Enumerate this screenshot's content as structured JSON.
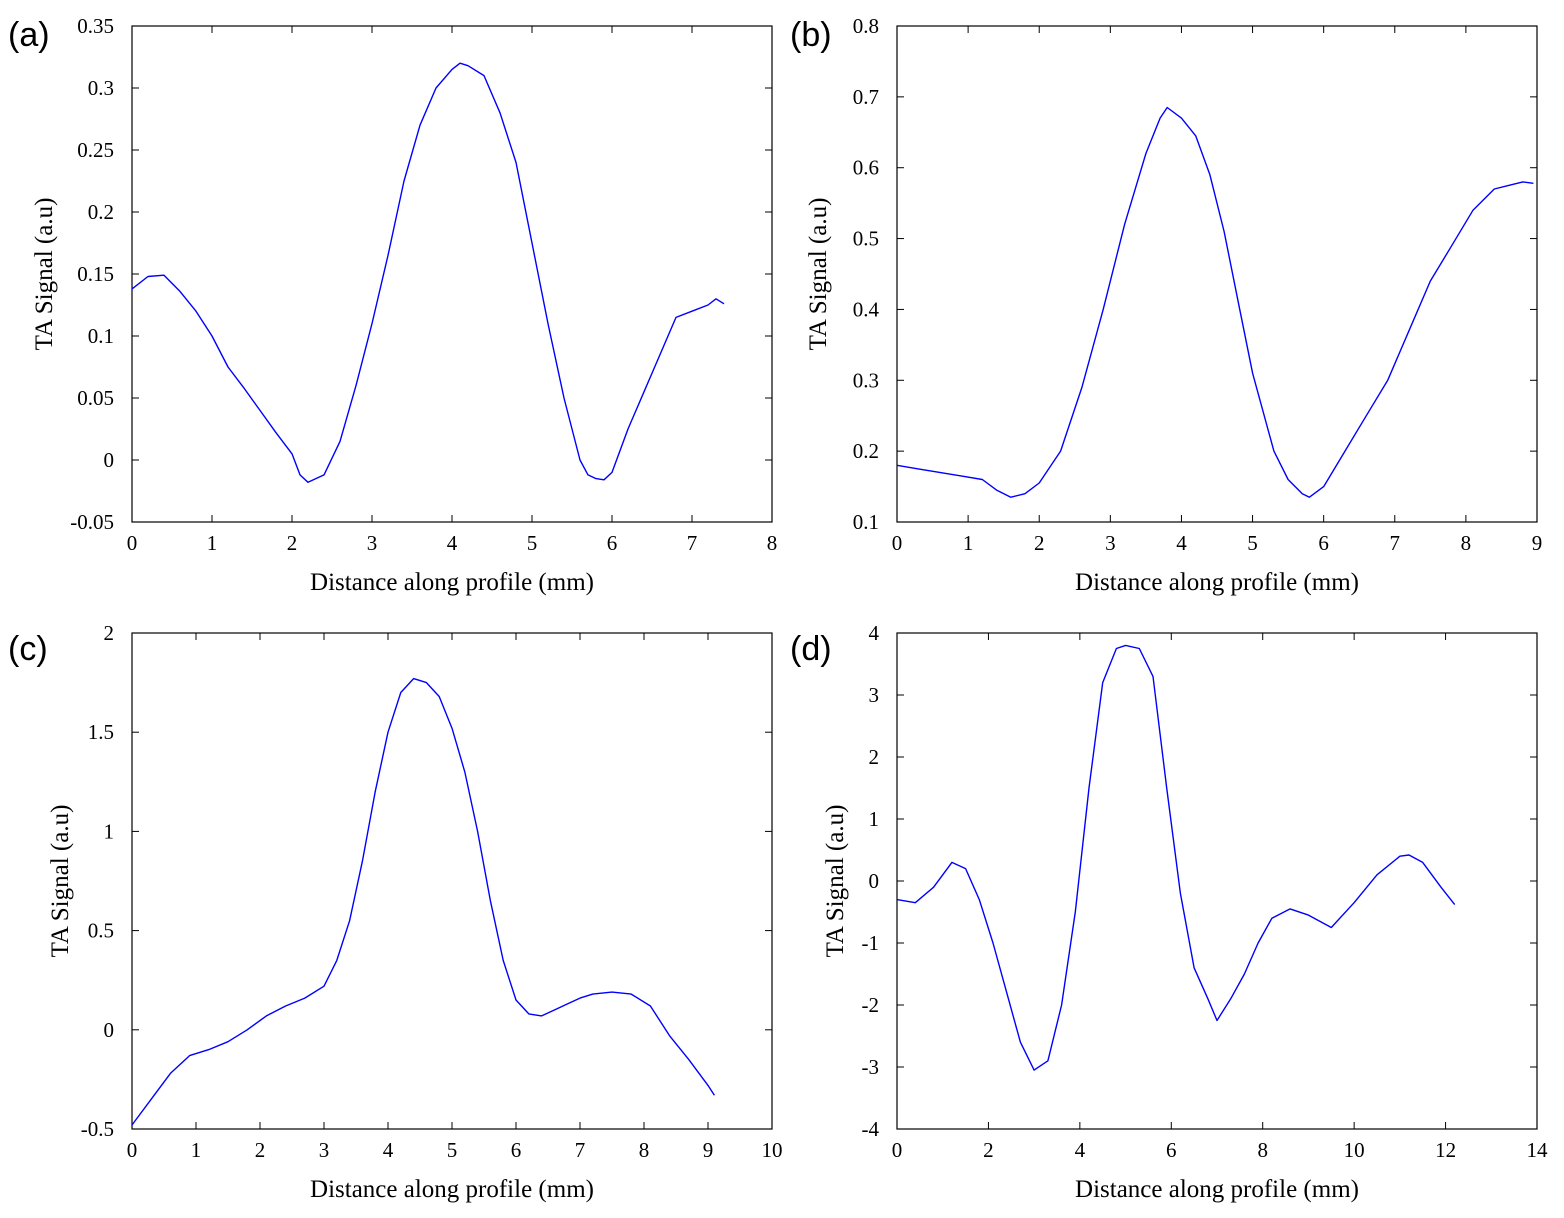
{
  "chart_data": [
    {
      "panel_label": "(a)",
      "type": "line",
      "xlabel": "Distance along profile (mm)",
      "ylabel": "TA Signal (a.u)",
      "xlim": [
        0,
        8
      ],
      "ylim": [
        -0.05,
        0.35
      ],
      "xticks": [
        0,
        1,
        2,
        3,
        4,
        5,
        6,
        7,
        8
      ],
      "yticks": [
        -0.05,
        0,
        0.05,
        0.1,
        0.15,
        0.2,
        0.25,
        0.3,
        0.35
      ],
      "xtick_labels": [
        "0",
        "1",
        "2",
        "3",
        "4",
        "5",
        "6",
        "7",
        "8"
      ],
      "ytick_labels": [
        "-0.05",
        "0",
        "0.05",
        "0.1",
        "0.15",
        "0.2",
        "0.25",
        "0.3",
        "0.35"
      ],
      "line_color": "#0000ff",
      "series": [
        {
          "name": "TA Signal",
          "x": [
            0,
            0.2,
            0.4,
            0.6,
            0.8,
            1.0,
            1.2,
            1.4,
            1.6,
            1.8,
            2.0,
            2.1,
            2.2,
            2.4,
            2.6,
            2.8,
            3.0,
            3.2,
            3.4,
            3.6,
            3.8,
            4.0,
            4.1,
            4.2,
            4.4,
            4.6,
            4.8,
            5.0,
            5.2,
            5.4,
            5.6,
            5.7,
            5.8,
            5.9,
            6.0,
            6.2,
            6.4,
            6.6,
            6.8,
            7.0,
            7.2,
            7.3,
            7.4
          ],
          "y": [
            0.138,
            0.148,
            0.149,
            0.136,
            0.12,
            0.1,
            0.075,
            0.058,
            0.04,
            0.022,
            0.005,
            -0.012,
            -0.018,
            -0.012,
            0.015,
            0.06,
            0.11,
            0.165,
            0.225,
            0.27,
            0.3,
            0.315,
            0.32,
            0.318,
            0.31,
            0.28,
            0.24,
            0.175,
            0.11,
            0.05,
            0.0,
            -0.012,
            -0.015,
            -0.016,
            -0.01,
            0.025,
            0.055,
            0.085,
            0.115,
            0.12,
            0.125,
            0.13,
            0.126
          ]
        }
      ]
    },
    {
      "panel_label": "(b)",
      "type": "line",
      "xlabel": "Distance along profile (mm)",
      "ylabel": "TA Signal (a.u)",
      "xlim": [
        0,
        9
      ],
      "ylim": [
        0.1,
        0.8
      ],
      "xticks": [
        0,
        1,
        2,
        3,
        4,
        5,
        6,
        7,
        8,
        9
      ],
      "yticks": [
        0.1,
        0.2,
        0.3,
        0.4,
        0.5,
        0.6,
        0.7,
        0.8
      ],
      "xtick_labels": [
        "0",
        "1",
        "2",
        "3",
        "4",
        "5",
        "6",
        "7",
        "8",
        "9"
      ],
      "ytick_labels": [
        "0.1",
        "0.2",
        "0.3",
        "0.4",
        "0.5",
        "0.6",
        "0.7",
        "0.8"
      ],
      "line_color": "#0000ff",
      "series": [
        {
          "name": "TA Signal",
          "x": [
            0,
            0.3,
            0.6,
            0.9,
            1.2,
            1.4,
            1.6,
            1.8,
            2.0,
            2.3,
            2.6,
            2.9,
            3.2,
            3.5,
            3.7,
            3.8,
            4.0,
            4.2,
            4.4,
            4.6,
            4.8,
            5.0,
            5.3,
            5.5,
            5.7,
            5.8,
            6.0,
            6.3,
            6.6,
            6.9,
            7.2,
            7.5,
            7.8,
            8.1,
            8.4,
            8.6,
            8.8,
            8.95
          ],
          "y": [
            0.18,
            0.175,
            0.17,
            0.165,
            0.16,
            0.145,
            0.135,
            0.14,
            0.155,
            0.2,
            0.29,
            0.4,
            0.52,
            0.62,
            0.67,
            0.685,
            0.67,
            0.645,
            0.59,
            0.51,
            0.41,
            0.31,
            0.2,
            0.16,
            0.14,
            0.135,
            0.15,
            0.2,
            0.25,
            0.3,
            0.37,
            0.44,
            0.49,
            0.54,
            0.57,
            0.575,
            0.58,
            0.578
          ]
        }
      ]
    },
    {
      "panel_label": "(c)",
      "type": "line",
      "xlabel": "Distance along profile (mm)",
      "ylabel": "TA Signal (a.u)",
      "xlim": [
        0,
        10
      ],
      "ylim": [
        -0.5,
        2
      ],
      "xticks": [
        0,
        1,
        2,
        3,
        4,
        5,
        6,
        7,
        8,
        9,
        10
      ],
      "yticks": [
        -0.5,
        0,
        0.5,
        1,
        1.5,
        2
      ],
      "xtick_labels": [
        "0",
        "1",
        "2",
        "3",
        "4",
        "5",
        "6",
        "7",
        "8",
        "9",
        "10"
      ],
      "ytick_labels": [
        "-0.5",
        "0",
        "0.5",
        "1",
        "1.5",
        "2"
      ],
      "line_color": "#0000ff",
      "series": [
        {
          "name": "TA Signal",
          "x": [
            0,
            0.3,
            0.6,
            0.9,
            1.2,
            1.5,
            1.8,
            2.1,
            2.4,
            2.7,
            3.0,
            3.2,
            3.4,
            3.6,
            3.8,
            4.0,
            4.2,
            4.4,
            4.6,
            4.8,
            5.0,
            5.2,
            5.4,
            5.6,
            5.8,
            6.0,
            6.2,
            6.4,
            6.6,
            6.8,
            7.0,
            7.2,
            7.5,
            7.8,
            8.1,
            8.4,
            8.7,
            9.0,
            9.1
          ],
          "y": [
            -0.48,
            -0.35,
            -0.22,
            -0.13,
            -0.1,
            -0.06,
            0.0,
            0.07,
            0.12,
            0.16,
            0.22,
            0.35,
            0.55,
            0.85,
            1.2,
            1.5,
            1.7,
            1.77,
            1.75,
            1.68,
            1.52,
            1.3,
            1.0,
            0.65,
            0.35,
            0.15,
            0.08,
            0.07,
            0.1,
            0.13,
            0.16,
            0.18,
            0.19,
            0.18,
            0.12,
            -0.03,
            -0.15,
            -0.28,
            -0.33
          ]
        }
      ]
    },
    {
      "panel_label": "(d)",
      "type": "line",
      "xlabel": "Distance along profile (mm)",
      "ylabel": "TA Signal (a.u)",
      "xlim": [
        0,
        14
      ],
      "ylim": [
        -4,
        4
      ],
      "xticks": [
        0,
        2,
        4,
        6,
        8,
        10,
        12,
        14
      ],
      "yticks": [
        -4,
        -3,
        -2,
        -1,
        0,
        1,
        2,
        3,
        4
      ],
      "xtick_labels": [
        "0",
        "2",
        "4",
        "6",
        "8",
        "10",
        "12",
        "14"
      ],
      "ytick_labels": [
        "-4",
        "-3",
        "-2",
        "-1",
        "0",
        "1",
        "2",
        "3",
        "4"
      ],
      "line_color": "#0000ff",
      "series": [
        {
          "name": "TA Signal",
          "x": [
            0,
            0.4,
            0.8,
            1.2,
            1.5,
            1.8,
            2.1,
            2.4,
            2.7,
            3.0,
            3.3,
            3.6,
            3.9,
            4.2,
            4.5,
            4.8,
            5.0,
            5.3,
            5.6,
            5.9,
            6.2,
            6.5,
            6.8,
            7.0,
            7.3,
            7.6,
            7.9,
            8.2,
            8.6,
            9.0,
            9.5,
            10.0,
            10.5,
            11.0,
            11.2,
            11.5,
            11.9,
            12.2
          ],
          "y": [
            -0.3,
            -0.35,
            -0.1,
            0.3,
            0.2,
            -0.3,
            -1.0,
            -1.8,
            -2.6,
            -3.05,
            -2.9,
            -2.0,
            -0.5,
            1.5,
            3.2,
            3.75,
            3.8,
            3.75,
            3.3,
            1.5,
            -0.2,
            -1.4,
            -1.9,
            -2.25,
            -1.9,
            -1.5,
            -1.0,
            -0.6,
            -0.45,
            -0.55,
            -0.75,
            -0.35,
            0.1,
            0.4,
            0.42,
            0.3,
            -0.1,
            -0.38
          ]
        }
      ]
    }
  ]
}
